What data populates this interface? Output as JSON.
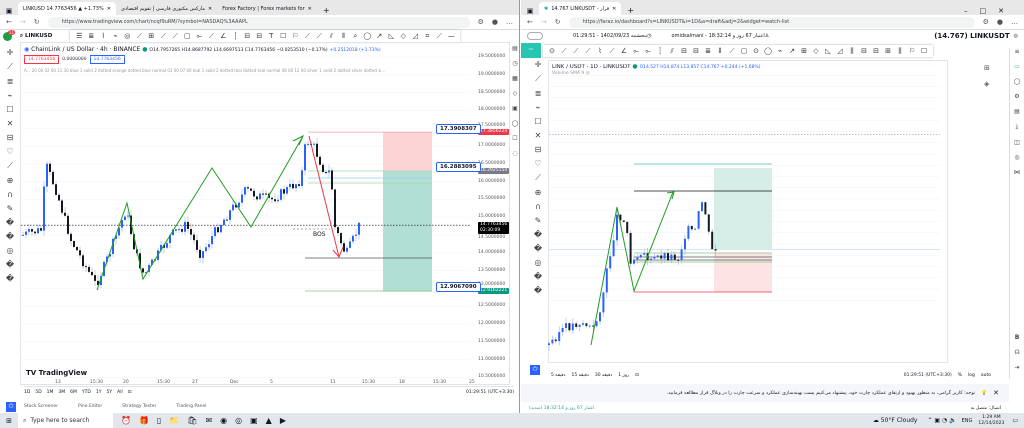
{
  "left_window": {
    "tabs": [
      {
        "label": "LINKUSD 14.7763456 ▲ +1.73%"
      },
      {
        "label": "مارکس مکتوری فارسی | تقویم اقتصادی"
      },
      {
        "label": "Forex Factory | Forex markets for"
      }
    ],
    "url": "https://www.tradingview.com/chart/ncqf9uRM/?symbol=NASDAQ%3AAAPL",
    "symbol": "LINKUSD",
    "notification_count": "11",
    "legend": {
      "title": "ChainLink / US Dollar · 4h · BINANCE",
      "ohlc": "O14.7957265 H14.8687792 L14.6697513 C14.7763456 −0.0253510 (−0.17%)",
      "change": "+0.2512018 (+1.73%)",
      "sell": "14.7763456",
      "spread": "0.0000000",
      "buy": "14.7763456",
      "indicator": "A... 20 00 02 00 11 30 blue 1 solid 2 dotted orange dotted blue normal 03 00 07 00 teal 1 solid 2 dotted teal dotted teal normal 08 00 12 00 silver 1 solid 2 dotted silver dotted si..."
    },
    "price_axis": [
      "19.5000000",
      "19.0000000",
      "18.5000000",
      "18.0000000",
      "17.5000000",
      "17.0000000",
      "16.5000000",
      "16.0000000",
      "15.5000000",
      "15.0000000",
      "14.5000000",
      "14.0000000",
      "13.5000000",
      "13.0000000",
      "12.5000000",
      "12.0000000",
      "11.5000000",
      "11.0000000",
      "10.5000000"
    ],
    "price_tags": [
      {
        "text": "17.3856224",
        "color": "#f23645",
        "price": 17.3856
      },
      {
        "text": "16.2925154",
        "color": "#787b86",
        "price": 16.2925
      },
      {
        "text": "14.7763456\n02:30:09",
        "color": "#000000",
        "price": 14.7763
      },
      {
        "text": "12.9162221",
        "color": "#089981",
        "price": 12.9162
      }
    ],
    "callouts": [
      {
        "text": "17.3908307",
        "price": 17.3908
      },
      {
        "text": "16.2883095",
        "price": 16.2883
      },
      {
        "text": "12.9067090",
        "price": 12.9067
      }
    ],
    "bos_label": "BOS",
    "time_axis": [
      "13",
      "15:30",
      "20",
      "15:30",
      "27",
      "Dec",
      "5",
      "11",
      "15:30",
      "18",
      "15:30",
      "25"
    ],
    "logo": "TradingView",
    "timeframes": [
      "1D",
      "5D",
      "1M",
      "3M",
      "6M",
      "YTD",
      "1Y",
      "5Y",
      "All"
    ],
    "clock": "01:29:51 (UTC+3:30)",
    "bottom_tabs": [
      "Stock Screener",
      "Pine Editor",
      "Strategy Tester",
      "Trading Panel"
    ]
  },
  "right_window": {
    "tab": "14.767 LINKUSDT - فراز",
    "url": "https://faraz.io/dashboard?s=LINKUSDT&i=1D&a=draft&adj=2&widget=watch-list",
    "header": {
      "datetime": "01:29:51 - 1402/09/23 پنجشنبه",
      "account": "omidsalmani - اعتبار 67 روز و 18:32:14",
      "symbol_price": "(14.767) LINKUSDT"
    },
    "legend": {
      "title": "LINK / USDT · 1D · LINKUSDT",
      "ohlc": "O14.527 H14.874 L13.857 C14.767 +0.244 (+1.68%)",
      "volume": "Volume SMA 9"
    },
    "price_axis": [
      "23.000",
      "22.500",
      "22.000",
      "21.500",
      "21.000",
      "20.500",
      "20.000",
      "19.500",
      "19.000",
      "18.500",
      "18.000",
      "17.500",
      "17.000",
      "16.500",
      "16.000",
      "15.500",
      "15.000",
      "14.500",
      "14.000",
      "13.500",
      "13.000",
      "12.500"
    ],
    "price_tags": [
      {
        "text": "19.859",
        "color": "#131722",
        "price": 19.859
      },
      {
        "text": "18.798",
        "color": "#089981",
        "price": 18.798
      },
      {
        "text": "14.767",
        "color": "#2962ff",
        "price": 14.767
      },
      {
        "text": "14.218",
        "color": "#5d606b",
        "price": 14.218
      },
      {
        "text": "12.786",
        "color": "#f23645",
        "price": 12.786
      }
    ],
    "callouts": [
      {
        "text": "18.381",
        "price": 18.381
      },
      {
        "text": "14.197",
        "price": 14.197
      },
      {
        "text": "12.786",
        "price": 12.786
      }
    ],
    "time_axis": [
      "21",
      "Nov",
      "11",
      "21",
      "Dec",
      "11",
      "21",
      "2024",
      "14 Jan '24",
      "21",
      "Feb",
      "11",
      "Mar"
    ],
    "timeframes": [
      "5 دقیقه",
      "15 دقیقه",
      "30 دقیقه",
      "1 روز"
    ],
    "clock": "01:29:51 (UTC+3:30)",
    "scale_options": [
      "%",
      "log",
      "auto"
    ],
    "notice": "توجه: کاربر گرامی، به منظور بهبود و ارتقای عملکرد چارت خود، پیشنهاد می‌کنیم پست بهینه‌سازی عملکرد و سرعت چارت را در وبلاگ فراز مطالعه فرمایید.",
    "status_left": "(تمدید) اعتبار 67 روز و 18:32:14",
    "status_right": "اتصال: متصل به"
  },
  "taskbar": {
    "search_placeholder": "Type here to search",
    "weather": "50°F Cloudy",
    "language": "ENG",
    "time": "1:29 AM",
    "date": "12/14/2023"
  },
  "colors": {
    "up": "#2962ff",
    "down": "#131722",
    "zigzag": "#1e9e1e",
    "arrow_down": "#f23645",
    "target_zone": "#b2dfd5",
    "stop_zone": "#fcd4d6"
  }
}
